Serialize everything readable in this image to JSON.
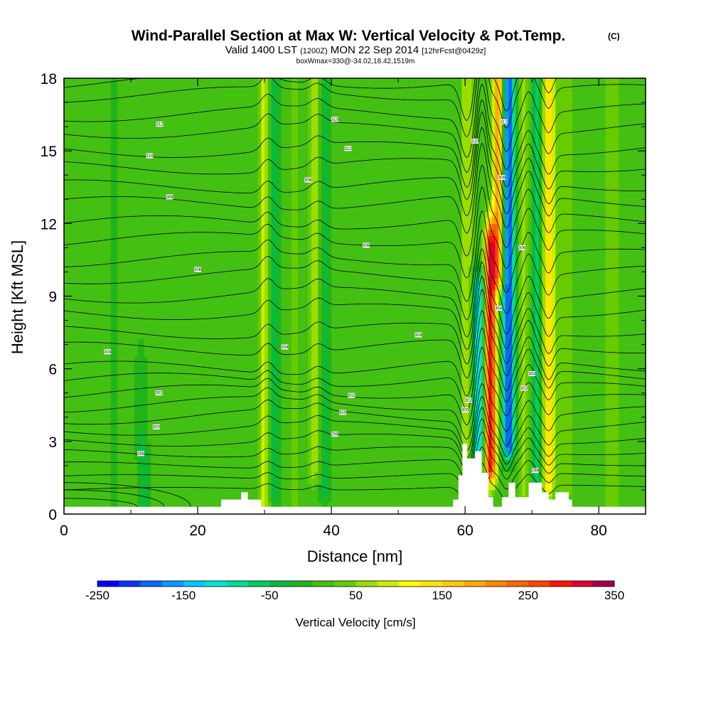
{
  "chart_data": {
    "type": "heatmap",
    "title": "Wind-Parallel Section at Max W: Vertical Velocity & Pot.Temp.",
    "title_mark": "(C)",
    "subtitle": {
      "valid": "Valid 1400 LST",
      "utc": "(1200Z)",
      "date": "MON 22 Sep 2014",
      "forecast": "[12hrFcst@0429z]"
    },
    "box_info": "boxWmax=330@-34.02,18.42,1519m",
    "xlabel": "Distance [nm]",
    "ylabel": "Height [Kft MSL]",
    "xlim": [
      0,
      87
    ],
    "ylim": [
      0,
      18
    ],
    "xticks": [
      0,
      20,
      40,
      60,
      80
    ],
    "yticks": [
      0,
      3,
      6,
      9,
      12,
      15,
      18
    ],
    "colorbar": {
      "label": "Vertical Velocity [cm/s]",
      "min": -250,
      "max": 350,
      "step": 25,
      "tick_values": [
        -250,
        -150,
        -50,
        50,
        150,
        250,
        350
      ],
      "tick_labels": [
        "-250",
        "-150",
        "-50",
        "50",
        "150",
        "250",
        "350"
      ],
      "colors": [
        "#0000ff",
        "#0c35ff",
        "#0d68ff",
        "#0a9aff",
        "#00c8ff",
        "#00e6d6",
        "#00dc9a",
        "#00cd66",
        "#07bb3d",
        "#22b51a",
        "#44c012",
        "#66cc00",
        "#9ade00",
        "#ccee00",
        "#ffff00",
        "#ffe600",
        "#ffcc00",
        "#ffaa00",
        "#ff8800",
        "#ff6600",
        "#ff4400",
        "#ff1500",
        "#e00030",
        "#a00050"
      ]
    },
    "background_w": 12,
    "vertical_velocity_features": [
      {
        "center_nm": 2.0,
        "height_kft": [
          13.0,
          18.0
        ],
        "w_cms": 0
      },
      {
        "center_nm": 7.5,
        "height_kft": [
          0.8,
          18.0
        ],
        "w_cms": -10
      },
      {
        "center_nm": 11.5,
        "height_kft": [
          3.0,
          6.0
        ],
        "w_cms": -20
      },
      {
        "center_nm": 12.0,
        "height_kft": [
          0.4,
          1.8
        ],
        "w_cms": -40
      },
      {
        "center_nm": 30.0,
        "height_kft": [
          0.5,
          18.0
        ],
        "w_cms": 85
      },
      {
        "center_nm": 31.5,
        "height_kft": [
          1.0,
          18.0
        ],
        "w_cms": -45
      },
      {
        "center_nm": 34.5,
        "height_kft": [
          0.5,
          18.0
        ],
        "w_cms": 30
      },
      {
        "center_nm": 37.5,
        "height_kft": [
          2.0,
          18.0
        ],
        "w_cms": 70
      },
      {
        "center_nm": 39.0,
        "height_kft": [
          1.0,
          18.0
        ],
        "w_cms": -35
      },
      {
        "center_nm": 44.0,
        "height_kft": [
          1.0,
          18.0
        ],
        "w_cms": 5
      },
      {
        "center_nm": 60.3,
        "height_kft": [
          2.5,
          18.0
        ],
        "w_cms": 70
      },
      {
        "center_nm": 62.0,
        "height_kft": [
          2.5,
          9.0
        ],
        "w_cms": -140
      },
      {
        "center_nm": 63.8,
        "height_kft": [
          2.0,
          11.0
        ],
        "w_cms": 300
      },
      {
        "center_nm": 65.0,
        "height_kft": [
          10.0,
          18.0
        ],
        "w_cms": 200
      },
      {
        "center_nm": 66.5,
        "height_kft": [
          3.0,
          18.0
        ],
        "w_cms": -210
      },
      {
        "center_nm": 69.0,
        "height_kft": [
          1.0,
          18.0
        ],
        "w_cms": 60
      },
      {
        "center_nm": 70.5,
        "height_kft": [
          1.0,
          18.0
        ],
        "w_cms": -60
      },
      {
        "center_nm": 72.5,
        "height_kft": [
          1.5,
          18.0
        ],
        "w_cms": 150
      },
      {
        "center_nm": 75.0,
        "height_kft": [
          1.0,
          18.0
        ],
        "w_cms": 45
      },
      {
        "center_nm": 82.0,
        "height_kft": [
          0.3,
          18.0
        ],
        "w_cms": 45
      }
    ],
    "terrain_kft": {
      "x_nm": [
        0,
        23.5,
        23.5,
        26.5,
        26.5,
        27.5,
        27.5,
        29.5,
        29.5,
        58.2,
        58.2,
        59.0,
        59.0,
        59.6,
        59.6,
        60.3,
        60.3,
        61.5,
        61.5,
        62.5,
        62.5,
        63.5,
        63.5,
        64.2,
        64.2,
        65.5,
        65.5,
        66.5,
        66.5,
        67.5,
        67.5,
        69.5,
        69.5,
        71.5,
        71.5,
        72.5,
        72.5,
        73.5,
        73.5,
        75.5,
        75.5,
        76.0,
        76.0,
        77.5,
        77.5,
        87
      ],
      "height": [
        0.3,
        0.3,
        0.6,
        0.6,
        0.9,
        0.9,
        0.6,
        0.6,
        0.3,
        0.3,
        0.6,
        0.6,
        1.6,
        1.6,
        2.9,
        2.9,
        2.3,
        2.3,
        2.6,
        2.6,
        1.7,
        1.7,
        0.7,
        0.7,
        0.3,
        0.3,
        0.7,
        0.7,
        1.3,
        1.3,
        0.7,
        0.7,
        1.3,
        1.3,
        0.9,
        0.9,
        0.6,
        0.6,
        0.9,
        0.9,
        0.6,
        0.6,
        0.3,
        0.3,
        0.3,
        0.3
      ]
    },
    "theta_contours": {
      "units": "K",
      "baseline_kft": [
        1.0,
        1.5,
        2.0,
        2.5,
        3.0,
        3.5,
        4.0,
        4.5,
        5.0,
        5.5,
        6.0,
        6.8,
        7.5,
        8.3,
        9.0,
        9.8,
        10.5,
        11.3,
        12.0,
        12.8,
        13.5,
        14.3,
        15.0,
        15.8,
        16.5,
        17.3,
        17.8
      ],
      "labels": [
        {
          "text": "298",
          "x_nm": 11.5,
          "height_kft": 2.5
        },
        {
          "text": "300",
          "x_nm": 13.8,
          "height_kft": 3.6
        },
        {
          "text": "302",
          "x_nm": 14.2,
          "height_kft": 5.0
        },
        {
          "text": "304",
          "x_nm": 6.5,
          "height_kft": 6.7
        },
        {
          "text": "306",
          "x_nm": 20.0,
          "height_kft": 10.1
        },
        {
          "text": "308",
          "x_nm": 15.8,
          "height_kft": 13.1
        },
        {
          "text": "310",
          "x_nm": 12.8,
          "height_kft": 14.8
        },
        {
          "text": "312",
          "x_nm": 14.3,
          "height_kft": 16.1
        },
        {
          "text": "304",
          "x_nm": 33.0,
          "height_kft": 6.9
        },
        {
          "text": "306",
          "x_nm": 36.5,
          "height_kft": 13.8
        },
        {
          "text": "310",
          "x_nm": 40.5,
          "height_kft": 16.3
        },
        {
          "text": "312",
          "x_nm": 42.5,
          "height_kft": 15.1
        },
        {
          "text": "298",
          "x_nm": 40.5,
          "height_kft": 3.3
        },
        {
          "text": "300",
          "x_nm": 41.7,
          "height_kft": 4.2
        },
        {
          "text": "302",
          "x_nm": 43.0,
          "height_kft": 4.9
        },
        {
          "text": "306",
          "x_nm": 45.2,
          "height_kft": 11.1
        },
        {
          "text": "304",
          "x_nm": 53.0,
          "height_kft": 7.4
        },
        {
          "text": "300",
          "x_nm": 60.0,
          "height_kft": 4.3
        },
        {
          "text": "302",
          "x_nm": 60.5,
          "height_kft": 4.7
        },
        {
          "text": "304",
          "x_nm": 65.0,
          "height_kft": 8.5
        },
        {
          "text": "306",
          "x_nm": 68.5,
          "height_kft": 11.0
        },
        {
          "text": "308",
          "x_nm": 65.5,
          "height_kft": 13.9
        },
        {
          "text": "310",
          "x_nm": 61.5,
          "height_kft": 15.4
        },
        {
          "text": "312",
          "x_nm": 65.8,
          "height_kft": 16.2
        },
        {
          "text": "302",
          "x_nm": 68.8,
          "height_kft": 5.2
        },
        {
          "text": "304",
          "x_nm": 70.0,
          "height_kft": 5.8
        },
        {
          "text": "298",
          "x_nm": 70.5,
          "height_kft": 1.8
        }
      ]
    }
  }
}
